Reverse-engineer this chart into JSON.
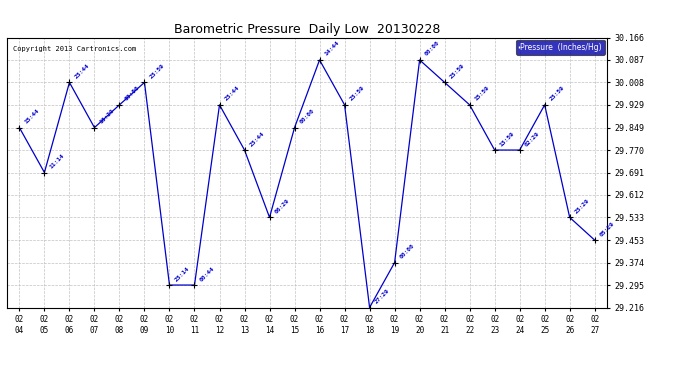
{
  "title": "Barometric Pressure  Daily Low  20130228",
  "copyright_text": "Copyright 2013 Cartronics.com",
  "legend_label": "Pressure  (Inches/Hg)",
  "line_color": "#0000cc",
  "marker_color": "#000000",
  "grid_color": "#cccccc",
  "legend_bg": "#0000aa",
  "legend_fg": "#ffffff",
  "ylim": [
    29.216,
    30.166
  ],
  "yticks": [
    29.216,
    29.295,
    29.374,
    29.453,
    29.533,
    29.612,
    29.691,
    29.77,
    29.849,
    29.929,
    30.008,
    30.087,
    30.166
  ],
  "data_x": [
    0,
    1,
    2,
    3,
    4,
    5,
    6,
    7,
    8,
    9,
    10,
    11,
    12,
    13,
    14,
    15,
    16,
    17,
    18,
    19,
    20,
    21,
    22,
    23
  ],
  "data_y": [
    29.849,
    29.691,
    30.008,
    29.849,
    29.929,
    30.008,
    29.295,
    29.295,
    29.929,
    29.77,
    29.533,
    29.849,
    30.087,
    29.929,
    29.216,
    29.374,
    30.087,
    30.008,
    29.929,
    29.77,
    29.77,
    29.929,
    29.533,
    29.453
  ],
  "data_times": [
    "15:44",
    "11:14",
    "23:44",
    "16:29",
    "00:00",
    "23:59",
    "23:14",
    "00:44",
    "23:44",
    "23:44",
    "06:29",
    "00:00",
    "14:44",
    "23:59",
    "27:29",
    "00:00",
    "00:00",
    "23:59",
    "15:59",
    "13:59",
    "02:29",
    "23:59",
    "23:29",
    "05:29"
  ],
  "x_labels": [
    "02/04",
    "02/05",
    "02/06",
    "02/07",
    "02/08",
    "02/09",
    "02/10",
    "02/11",
    "02/12",
    "02/13",
    "02/14",
    "02/15",
    "02/16",
    "02/17",
    "02/18",
    "02/19",
    "02/20",
    "02/21",
    "02/22",
    "02/23",
    "02/24",
    "02/25",
    "02/26",
    "02/27"
  ]
}
